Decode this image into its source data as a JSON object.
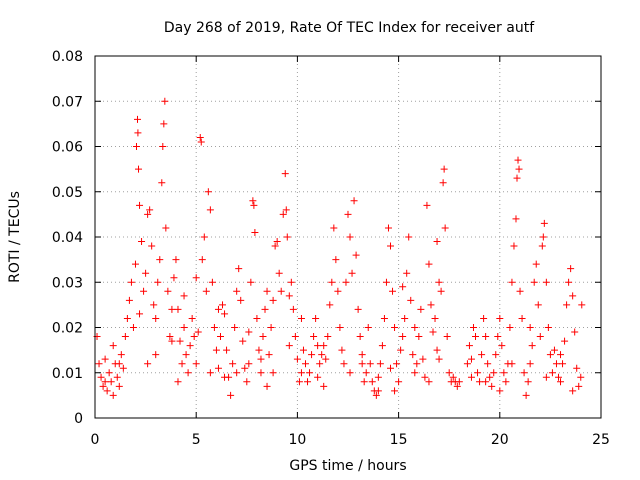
{
  "chart_data": {
    "type": "scatter",
    "title": "Day 268 of 2019, Rate Of TEC Index for receiver autf",
    "xlabel": "GPS time / hours",
    "ylabel": "ROTI / TECUs",
    "xlim": [
      0,
      25
    ],
    "ylim": [
      0,
      0.08
    ],
    "xticks": [
      0,
      5,
      10,
      15,
      20,
      25
    ],
    "xtick_labels": [
      "0",
      "5",
      "10",
      "15",
      "20",
      "25"
    ],
    "yticks": [
      0,
      0.01,
      0.02,
      0.03,
      0.04,
      0.05,
      0.06,
      0.07,
      0.08
    ],
    "ytick_labels": [
      "0",
      "0.01",
      "0.02",
      "0.03",
      "0.04",
      "0.05",
      "0.06",
      "0.07",
      "0.08"
    ],
    "grid": true,
    "marker": "plus",
    "color": "#ff0000",
    "series": [
      {
        "name": "ROTI",
        "points": [
          [
            0.1,
            0.018
          ],
          [
            0.2,
            0.012
          ],
          [
            0.3,
            0.009
          ],
          [
            0.4,
            0.007
          ],
          [
            0.5,
            0.008
          ],
          [
            0.6,
            0.006
          ],
          [
            0.7,
            0.01
          ],
          [
            0.8,
            0.008
          ],
          [
            0.9,
            0.005
          ],
          [
            1.0,
            0.012
          ],
          [
            1.1,
            0.009
          ],
          [
            1.2,
            0.007
          ],
          [
            1.3,
            0.014
          ],
          [
            1.4,
            0.011
          ],
          [
            1.5,
            0.018
          ],
          [
            1.6,
            0.022
          ],
          [
            1.7,
            0.026
          ],
          [
            1.8,
            0.03
          ],
          [
            1.9,
            0.02
          ],
          [
            2.0,
            0.034
          ],
          [
            2.05,
            0.06
          ],
          [
            2.1,
            0.066
          ],
          [
            2.12,
            0.063
          ],
          [
            2.15,
            0.055
          ],
          [
            2.2,
            0.047
          ],
          [
            2.3,
            0.039
          ],
          [
            2.4,
            0.028
          ],
          [
            2.5,
            0.032
          ],
          [
            2.6,
            0.045
          ],
          [
            2.7,
            0.046
          ],
          [
            2.8,
            0.038
          ],
          [
            2.9,
            0.025
          ],
          [
            3.0,
            0.022
          ],
          [
            3.1,
            0.03
          ],
          [
            3.2,
            0.035
          ],
          [
            3.3,
            0.052
          ],
          [
            3.35,
            0.06
          ],
          [
            3.4,
            0.065
          ],
          [
            3.45,
            0.07
          ],
          [
            3.5,
            0.042
          ],
          [
            3.6,
            0.028
          ],
          [
            3.7,
            0.018
          ],
          [
            3.8,
            0.024
          ],
          [
            3.9,
            0.031
          ],
          [
            4.0,
            0.035
          ],
          [
            4.1,
            0.024
          ],
          [
            4.2,
            0.017
          ],
          [
            4.3,
            0.012
          ],
          [
            4.4,
            0.02
          ],
          [
            4.5,
            0.014
          ],
          [
            4.6,
            0.01
          ],
          [
            4.7,
            0.016
          ],
          [
            4.8,
            0.022
          ],
          [
            4.9,
            0.018
          ],
          [
            5.0,
            0.012
          ],
          [
            5.1,
            0.019
          ],
          [
            5.2,
            0.062
          ],
          [
            5.25,
            0.061
          ],
          [
            5.3,
            0.035
          ],
          [
            5.4,
            0.04
          ],
          [
            5.5,
            0.028
          ],
          [
            5.6,
            0.05
          ],
          [
            5.7,
            0.046
          ],
          [
            5.8,
            0.03
          ],
          [
            5.9,
            0.02
          ],
          [
            6.0,
            0.015
          ],
          [
            6.1,
            0.011
          ],
          [
            6.2,
            0.018
          ],
          [
            6.3,
            0.025
          ],
          [
            6.4,
            0.023
          ],
          [
            6.5,
            0.015
          ],
          [
            6.6,
            0.009
          ],
          [
            6.7,
            0.005
          ],
          [
            6.8,
            0.012
          ],
          [
            6.9,
            0.02
          ],
          [
            7.0,
            0.028
          ],
          [
            7.1,
            0.033
          ],
          [
            7.2,
            0.026
          ],
          [
            7.3,
            0.017
          ],
          [
            7.4,
            0.011
          ],
          [
            7.5,
            0.008
          ],
          [
            7.6,
            0.019
          ],
          [
            7.7,
            0.03
          ],
          [
            7.8,
            0.048
          ],
          [
            7.85,
            0.047
          ],
          [
            7.9,
            0.041
          ],
          [
            8.0,
            0.022
          ],
          [
            8.1,
            0.015
          ],
          [
            8.2,
            0.01
          ],
          [
            8.3,
            0.018
          ],
          [
            8.4,
            0.024
          ],
          [
            8.5,
            0.028
          ],
          [
            8.6,
            0.014
          ],
          [
            8.7,
            0.02
          ],
          [
            8.8,
            0.026
          ],
          [
            8.9,
            0.038
          ],
          [
            9.0,
            0.039
          ],
          [
            9.1,
            0.032
          ],
          [
            9.2,
            0.028
          ],
          [
            9.3,
            0.045
          ],
          [
            9.4,
            0.054
          ],
          [
            9.45,
            0.046
          ],
          [
            9.5,
            0.04
          ],
          [
            9.6,
            0.027
          ],
          [
            9.7,
            0.03
          ],
          [
            9.8,
            0.024
          ],
          [
            9.9,
            0.018
          ],
          [
            10.0,
            0.013
          ],
          [
            10.1,
            0.008
          ],
          [
            10.2,
            0.01
          ],
          [
            10.3,
            0.015
          ],
          [
            10.4,
            0.012
          ],
          [
            10.5,
            0.008
          ],
          [
            10.6,
            0.01
          ],
          [
            10.7,
            0.014
          ],
          [
            10.8,
            0.018
          ],
          [
            10.9,
            0.022
          ],
          [
            11.0,
            0.016
          ],
          [
            11.1,
            0.012
          ],
          [
            11.2,
            0.014
          ],
          [
            11.3,
            0.016
          ],
          [
            11.4,
            0.013
          ],
          [
            11.5,
            0.018
          ],
          [
            11.6,
            0.025
          ],
          [
            11.7,
            0.03
          ],
          [
            11.8,
            0.042
          ],
          [
            11.9,
            0.035
          ],
          [
            12.0,
            0.028
          ],
          [
            12.1,
            0.02
          ],
          [
            12.2,
            0.015
          ],
          [
            12.3,
            0.012
          ],
          [
            12.4,
            0.03
          ],
          [
            12.5,
            0.045
          ],
          [
            12.6,
            0.04
          ],
          [
            12.7,
            0.032
          ],
          [
            12.8,
            0.048
          ],
          [
            12.9,
            0.036
          ],
          [
            13.0,
            0.024
          ],
          [
            13.1,
            0.018
          ],
          [
            13.2,
            0.012
          ],
          [
            13.3,
            0.008
          ],
          [
            13.4,
            0.01
          ],
          [
            13.5,
            0.02
          ],
          [
            13.6,
            0.012
          ],
          [
            13.7,
            0.008
          ],
          [
            13.8,
            0.006
          ],
          [
            13.9,
            0.005
          ],
          [
            14.0,
            0.009
          ],
          [
            14.1,
            0.012
          ],
          [
            14.2,
            0.016
          ],
          [
            14.3,
            0.022
          ],
          [
            14.4,
            0.03
          ],
          [
            14.5,
            0.042
          ],
          [
            14.6,
            0.038
          ],
          [
            14.7,
            0.028
          ],
          [
            14.8,
            0.02
          ],
          [
            14.9,
            0.012
          ],
          [
            15.0,
            0.008
          ],
          [
            15.1,
            0.015
          ],
          [
            15.2,
            0.018
          ],
          [
            15.3,
            0.022
          ],
          [
            15.4,
            0.032
          ],
          [
            15.5,
            0.04
          ],
          [
            15.6,
            0.026
          ],
          [
            15.7,
            0.014
          ],
          [
            15.8,
            0.01
          ],
          [
            15.9,
            0.012
          ],
          [
            16.0,
            0.018
          ],
          [
            16.1,
            0.024
          ],
          [
            16.2,
            0.013
          ],
          [
            16.3,
            0.009
          ],
          [
            16.4,
            0.047
          ],
          [
            16.5,
            0.034
          ],
          [
            16.6,
            0.025
          ],
          [
            16.7,
            0.019
          ],
          [
            16.8,
            0.022
          ],
          [
            16.9,
            0.039
          ],
          [
            17.0,
            0.03
          ],
          [
            17.1,
            0.028
          ],
          [
            17.2,
            0.052
          ],
          [
            17.25,
            0.055
          ],
          [
            17.3,
            0.042
          ],
          [
            17.4,
            0.018
          ],
          [
            17.5,
            0.01
          ],
          [
            17.6,
            0.008
          ],
          [
            17.7,
            0.009
          ],
          [
            17.8,
            0.008
          ],
          [
            17.9,
            0.007
          ],
          [
            18.0,
            0.008
          ],
          [
            18.4,
            0.012
          ],
          [
            18.5,
            0.016
          ],
          [
            18.6,
            0.013
          ],
          [
            18.7,
            0.02
          ],
          [
            18.8,
            0.018
          ],
          [
            18.9,
            0.01
          ],
          [
            19.0,
            0.008
          ],
          [
            19.1,
            0.014
          ],
          [
            19.2,
            0.022
          ],
          [
            19.3,
            0.018
          ],
          [
            19.4,
            0.012
          ],
          [
            19.5,
            0.009
          ],
          [
            19.6,
            0.007
          ],
          [
            19.7,
            0.01
          ],
          [
            19.8,
            0.014
          ],
          [
            19.9,
            0.018
          ],
          [
            20.0,
            0.022
          ],
          [
            20.1,
            0.016
          ],
          [
            20.2,
            0.01
          ],
          [
            20.3,
            0.008
          ],
          [
            20.4,
            0.012
          ],
          [
            20.5,
            0.02
          ],
          [
            20.6,
            0.03
          ],
          [
            20.7,
            0.038
          ],
          [
            20.8,
            0.044
          ],
          [
            20.85,
            0.053
          ],
          [
            20.9,
            0.057
          ],
          [
            20.95,
            0.055
          ],
          [
            21.0,
            0.028
          ],
          [
            21.1,
            0.022
          ],
          [
            21.2,
            0.01
          ],
          [
            21.3,
            0.005
          ],
          [
            21.4,
            0.008
          ],
          [
            21.5,
            0.012
          ],
          [
            21.6,
            0.016
          ],
          [
            21.7,
            0.03
          ],
          [
            21.8,
            0.034
          ],
          [
            21.9,
            0.025
          ],
          [
            22.0,
            0.018
          ],
          [
            22.1,
            0.038
          ],
          [
            22.15,
            0.04
          ],
          [
            22.2,
            0.043
          ],
          [
            22.3,
            0.03
          ],
          [
            22.4,
            0.02
          ],
          [
            22.5,
            0.014
          ],
          [
            22.6,
            0.01
          ],
          [
            22.7,
            0.015
          ],
          [
            22.8,
            0.012
          ],
          [
            22.9,
            0.009
          ],
          [
            23.0,
            0.008
          ],
          [
            23.1,
            0.012
          ],
          [
            23.2,
            0.017
          ],
          [
            23.3,
            0.025
          ],
          [
            23.4,
            0.03
          ],
          [
            23.5,
            0.033
          ],
          [
            23.6,
            0.027
          ],
          [
            23.7,
            0.019
          ],
          [
            23.8,
            0.011
          ],
          [
            23.9,
            0.007
          ],
          [
            24.0,
            0.009
          ],
          [
            24.05,
            0.025
          ],
          [
            0.5,
            0.013
          ],
          [
            1.2,
            0.012
          ],
          [
            2.2,
            0.023
          ],
          [
            3.0,
            0.014
          ],
          [
            3.8,
            0.017
          ],
          [
            4.4,
            0.027
          ],
          [
            5.0,
            0.031
          ],
          [
            5.7,
            0.01
          ],
          [
            6.4,
            0.009
          ],
          [
            7.0,
            0.01
          ],
          [
            7.6,
            0.012
          ],
          [
            8.2,
            0.013
          ],
          [
            8.8,
            0.01
          ],
          [
            9.6,
            0.016
          ],
          [
            10.2,
            0.022
          ],
          [
            11.0,
            0.009
          ],
          [
            12.6,
            0.01
          ],
          [
            13.2,
            0.014
          ],
          [
            14.0,
            0.006
          ],
          [
            14.6,
            0.011
          ],
          [
            15.2,
            0.029
          ],
          [
            15.8,
            0.02
          ],
          [
            16.5,
            0.008
          ],
          [
            17.0,
            0.013
          ],
          [
            18.6,
            0.009
          ],
          [
            19.3,
            0.008
          ],
          [
            20.0,
            0.006
          ],
          [
            20.6,
            0.012
          ],
          [
            21.5,
            0.02
          ],
          [
            22.3,
            0.009
          ],
          [
            23.0,
            0.014
          ],
          [
            23.6,
            0.006
          ],
          [
            0.9,
            0.016
          ],
          [
            2.6,
            0.012
          ],
          [
            4.1,
            0.008
          ],
          [
            6.1,
            0.024
          ],
          [
            8.5,
            0.007
          ],
          [
            11.3,
            0.007
          ],
          [
            14.8,
            0.006
          ],
          [
            16.9,
            0.015
          ]
        ]
      }
    ]
  }
}
